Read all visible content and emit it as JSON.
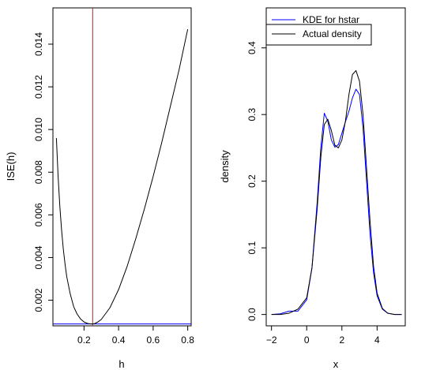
{
  "chart_data": [
    {
      "type": "line",
      "xlabel": "h",
      "ylabel": "ISE(h)",
      "xlim": [
        0.02,
        0.82
      ],
      "ylim": [
        0.0008,
        0.0157
      ],
      "xticks": [
        0.2,
        0.4,
        0.6,
        0.8
      ],
      "xtick_labels": [
        "0.2",
        "0.4",
        "0.6",
        "0.8"
      ],
      "yticks": [
        0.002,
        0.004,
        0.006,
        0.008,
        0.01,
        0.012,
        0.014
      ],
      "ytick_labels": [
        "0.002",
        "0.004",
        "0.006",
        "0.008",
        "0.010",
        "0.012",
        "0.014"
      ],
      "grid": false,
      "series": [
        {
          "color": "#000000",
          "x": [
            0.04,
            0.05,
            0.06,
            0.07,
            0.08,
            0.09,
            0.1,
            0.12,
            0.14,
            0.16,
            0.18,
            0.2,
            0.22,
            0.24,
            0.25,
            0.26,
            0.28,
            0.3,
            0.35,
            0.4,
            0.45,
            0.5,
            0.55,
            0.6,
            0.65,
            0.7,
            0.75,
            0.8
          ],
          "y": [
            0.0096,
            0.0078,
            0.0064,
            0.0053,
            0.0044,
            0.0037,
            0.0031,
            0.0023,
            0.0017,
            0.00135,
            0.00112,
            0.00098,
            0.00091,
            0.00089,
            0.00089,
            0.0009,
            0.00098,
            0.0011,
            0.00165,
            0.0025,
            0.0036,
            0.0049,
            0.0063,
            0.0078,
            0.0094,
            0.0111,
            0.0128,
            0.0147
          ]
        }
      ],
      "vline": {
        "x": 0.25,
        "color": "#ff0000"
      },
      "hline": {
        "y": 0.00089,
        "color": "#0000ff"
      }
    },
    {
      "type": "line",
      "xlabel": "x",
      "ylabel": "density",
      "xlim": [
        -2.3,
        5.6
      ],
      "ylim": [
        -0.017,
        0.46
      ],
      "xticks": [
        -2,
        0,
        2,
        4
      ],
      "xtick_labels": [
        "−2",
        "0",
        "2",
        "4"
      ],
      "yticks": [
        0.0,
        0.1,
        0.2,
        0.3,
        0.4
      ],
      "ytick_labels": [
        "0.0",
        "0.1",
        "0.2",
        "0.3",
        "0.4"
      ],
      "grid": false,
      "legend": {
        "position": "top-left",
        "entries": [
          "KDE for hstar",
          "Actual density"
        ],
        "colors": [
          "#0000ff",
          "#000000"
        ]
      },
      "series": [
        {
          "name": "KDE for hstar",
          "color": "#0000ff",
          "x": [
            -2.0,
            -1.5,
            -1.0,
            -0.5,
            0.0,
            0.3,
            0.6,
            0.8,
            1.0,
            1.2,
            1.4,
            1.6,
            1.8,
            2.0,
            2.2,
            2.4,
            2.6,
            2.8,
            3.0,
            3.2,
            3.4,
            3.6,
            3.8,
            4.0,
            4.3,
            4.6,
            5.0,
            5.4
          ],
          "y": [
            0.0,
            0.001,
            0.005,
            0.005,
            0.022,
            0.07,
            0.17,
            0.25,
            0.302,
            0.29,
            0.262,
            0.251,
            0.255,
            0.272,
            0.289,
            0.305,
            0.325,
            0.338,
            0.33,
            0.28,
            0.2,
            0.12,
            0.062,
            0.028,
            0.008,
            0.002,
            0.0,
            0.0
          ]
        },
        {
          "name": "Actual density",
          "color": "#000000",
          "x": [
            -2.0,
            -1.5,
            -1.0,
            -0.5,
            0.0,
            0.3,
            0.6,
            0.8,
            1.0,
            1.2,
            1.4,
            1.6,
            1.8,
            2.0,
            2.2,
            2.4,
            2.6,
            2.8,
            3.0,
            3.2,
            3.4,
            3.6,
            3.8,
            4.0,
            4.3,
            4.6,
            5.0,
            5.4
          ],
          "y": [
            0.0,
            0.0,
            0.002,
            0.008,
            0.025,
            0.07,
            0.16,
            0.235,
            0.285,
            0.293,
            0.276,
            0.254,
            0.25,
            0.262,
            0.29,
            0.33,
            0.36,
            0.366,
            0.35,
            0.3,
            0.22,
            0.14,
            0.072,
            0.032,
            0.009,
            0.002,
            0.0,
            0.0
          ]
        }
      ]
    }
  ]
}
